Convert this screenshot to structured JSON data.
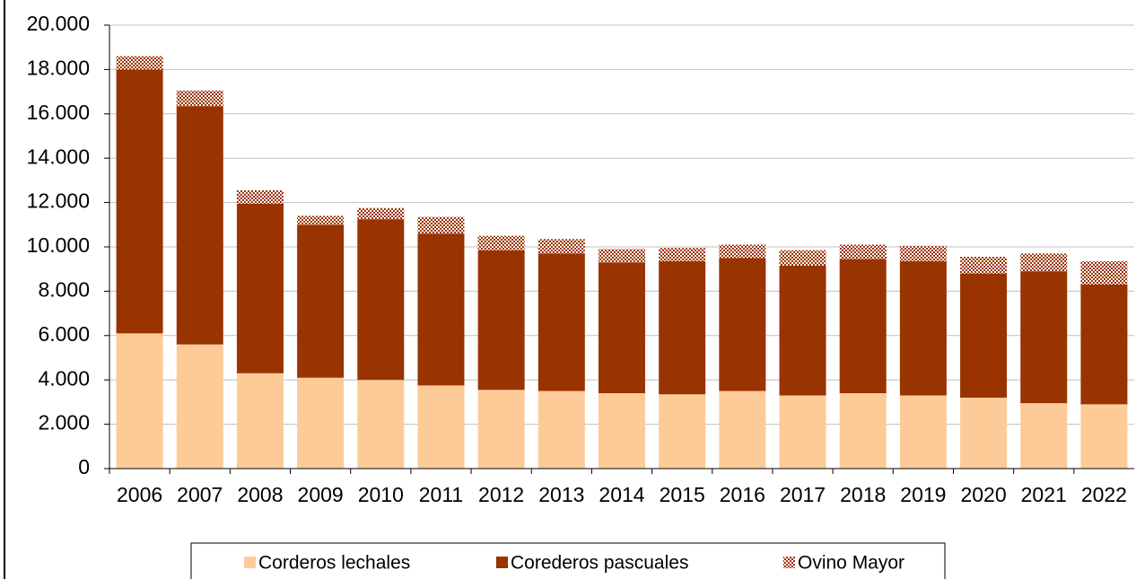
{
  "chart_data": {
    "type": "stacked_bar",
    "categories": [
      "2006",
      "2007",
      "2008",
      "2009",
      "2010",
      "2011",
      "2012",
      "2013",
      "2014",
      "2015",
      "2016",
      "2017",
      "2018",
      "2019",
      "2020",
      "2021",
      "2022"
    ],
    "series": [
      {
        "name": "Corderos lechales",
        "color": "#fccb98",
        "values": [
          6100,
          5600,
          4300,
          4100,
          4000,
          3750,
          3550,
          3500,
          3400,
          3350,
          3500,
          3300,
          3400,
          3300,
          3200,
          2950,
          2900
        ]
      },
      {
        "name": "Corederos pascuales",
        "color": "#993300",
        "values": [
          11900,
          10750,
          7650,
          6900,
          7250,
          6850,
          6300,
          6200,
          5900,
          6000,
          6000,
          5850,
          6050,
          6050,
          5600,
          5950,
          5400
        ]
      },
      {
        "name": "Ovino Mayor",
        "color": "#993300",
        "pattern": "dots",
        "values": [
          600,
          700,
          600,
          400,
          500,
          750,
          650,
          650,
          600,
          600,
          600,
          700,
          650,
          700,
          750,
          800,
          1050
        ]
      }
    ],
    "ylim": [
      0,
      20000
    ],
    "yticks": [
      0,
      {
        "value": 2000,
        "label": "2.000"
      },
      {
        "value": 4000,
        "label": "4.000"
      },
      {
        "value": 6000,
        "label": "6.000"
      },
      {
        "value": 8000,
        "label": "8.000"
      },
      {
        "value": 10000,
        "label": "10.000"
      },
      {
        "value": 12000,
        "label": "12.000"
      },
      {
        "value": 14000,
        "label": "14.000"
      },
      {
        "value": 16000,
        "label": "16.000"
      },
      {
        "value": 18000,
        "label": "18.000"
      },
      {
        "value": 20000,
        "label": "20.000"
      }
    ],
    "grid": true,
    "legend": "bottom"
  }
}
